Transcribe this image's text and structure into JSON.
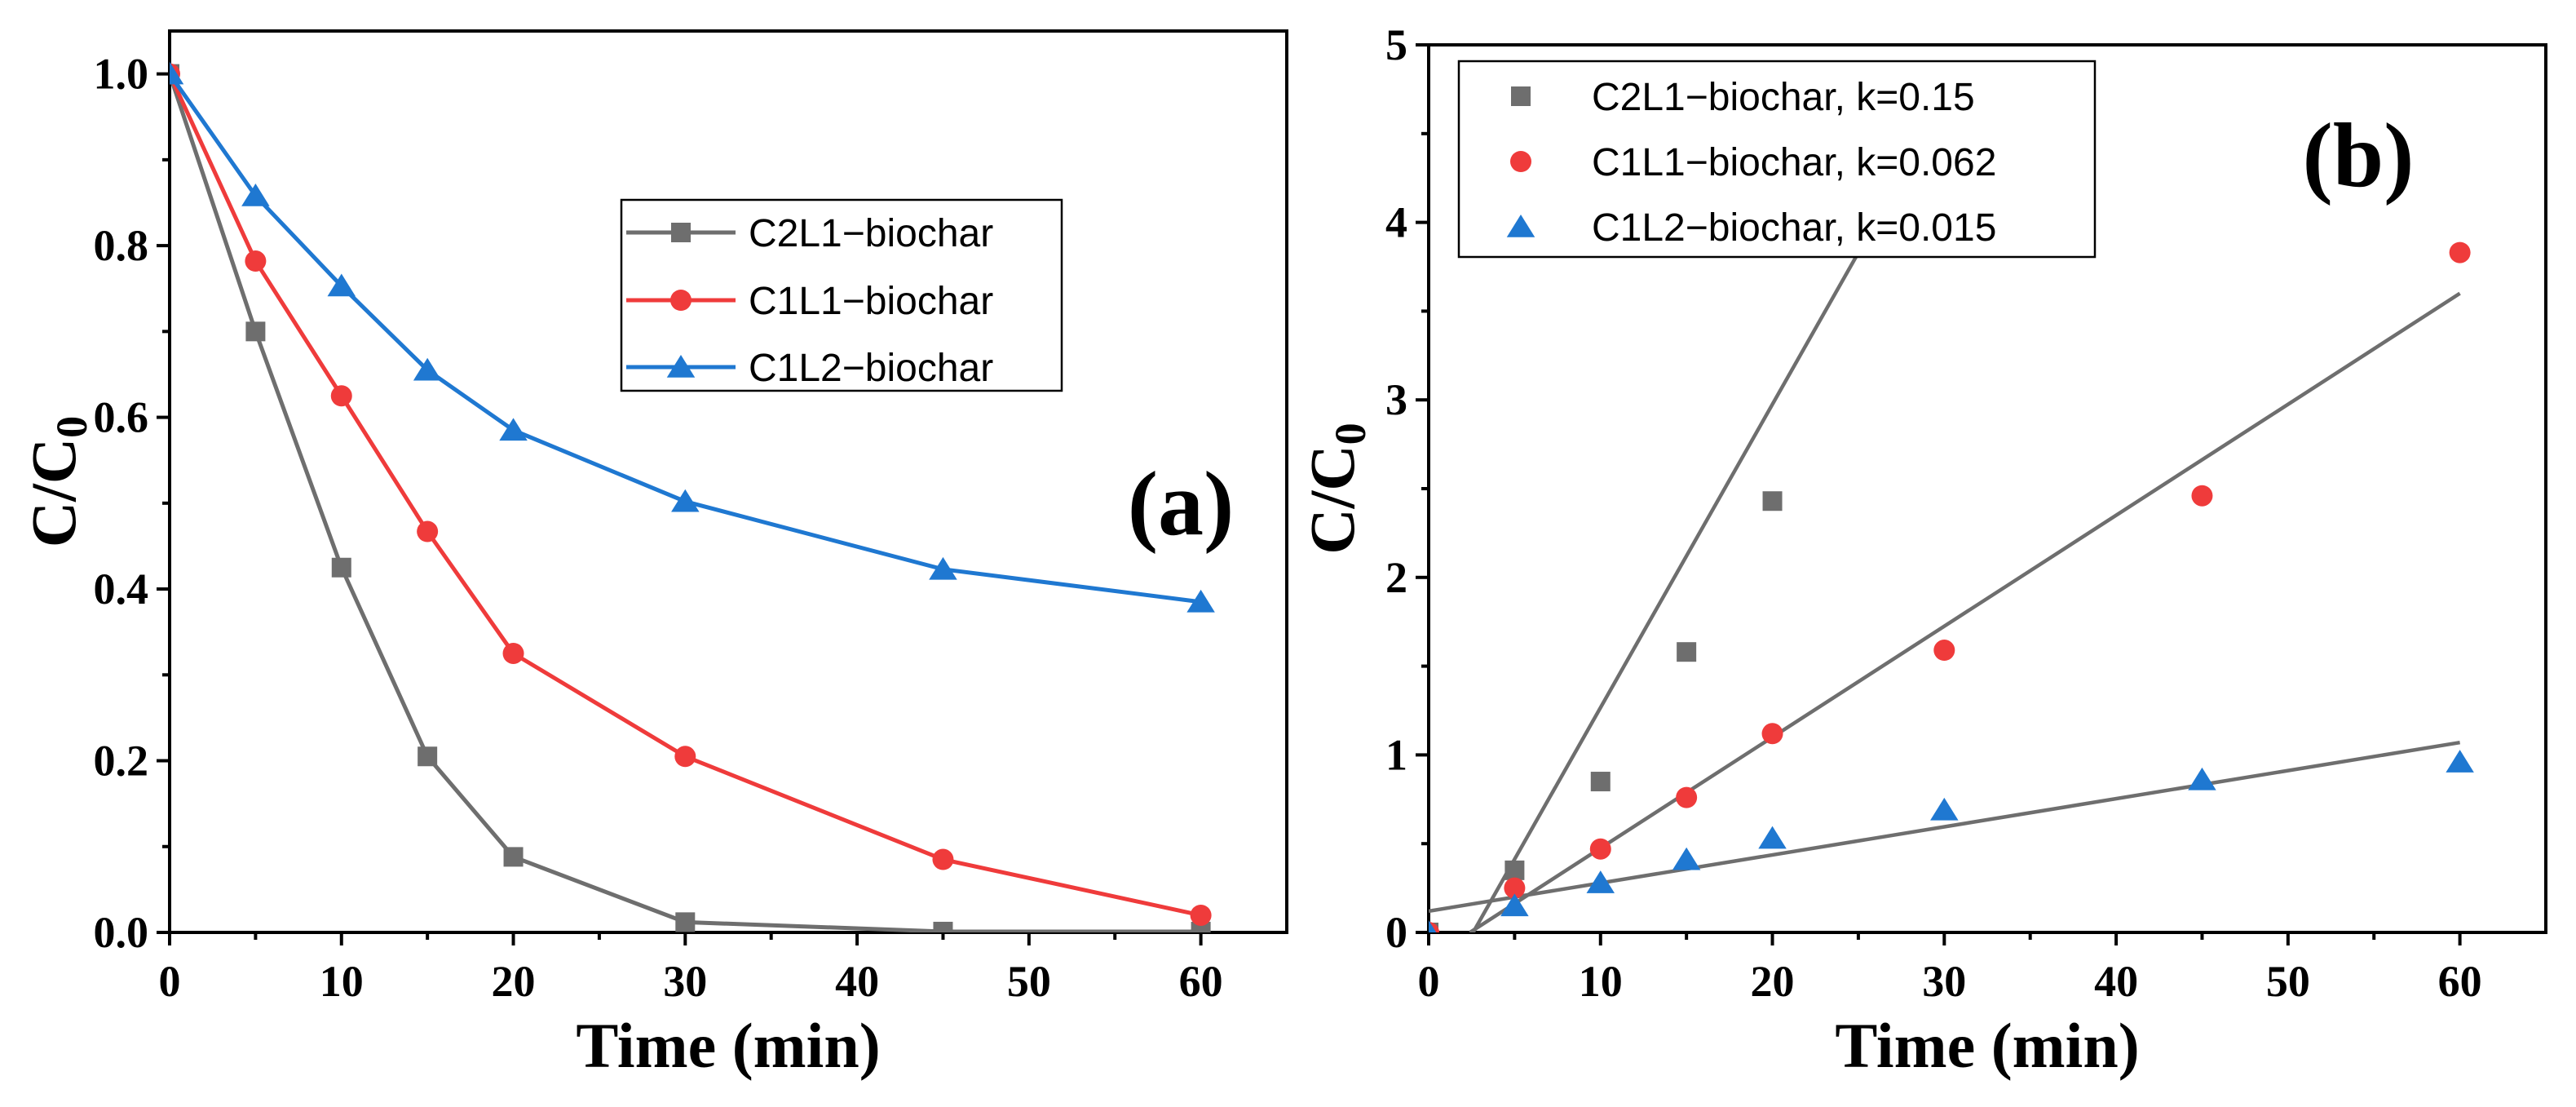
{
  "chart_data": [
    {
      "type": "line",
      "panel_label": "(a)",
      "xlabel": "Time (min)",
      "ylabel_main": "C/C",
      "ylabel_sub": "0",
      "xlim": [
        0,
        65
      ],
      "ylim": [
        0,
        1.05
      ],
      "xticks": [
        0,
        10,
        20,
        30,
        40,
        50,
        60
      ],
      "yticks": [
        "0.0",
        "0.2",
        "0.4",
        "0.6",
        "0.8",
        "1.0"
      ],
      "legend_position": "upper-right",
      "x": [
        0,
        5,
        10,
        15,
        20,
        30,
        45,
        60
      ],
      "series": [
        {
          "name": "C2L1−biochar",
          "color": "#6e6e6e",
          "marker": "square",
          "values": [
            1.0,
            0.7,
            0.425,
            0.205,
            0.088,
            0.012,
            0.001,
            0.001
          ]
        },
        {
          "name": "C1L1−biochar",
          "color": "#ef3b3b",
          "marker": "circle",
          "values": [
            1.0,
            0.782,
            0.625,
            0.467,
            0.325,
            0.205,
            0.085,
            0.02
          ]
        },
        {
          "name": "C1L2−biochar",
          "color": "#1f78d1",
          "marker": "triangle",
          "values": [
            1.0,
            0.858,
            0.753,
            0.655,
            0.585,
            0.502,
            0.423,
            0.385
          ]
        }
      ]
    },
    {
      "type": "scatter",
      "panel_label": "(b)",
      "xlabel": "Time (min)",
      "ylabel_main": "C/C",
      "ylabel_sub": "0",
      "xlim": [
        0,
        65
      ],
      "ylim": [
        0,
        5
      ],
      "xticks": [
        0,
        10,
        20,
        30,
        40,
        50,
        60
      ],
      "yticks": [
        "0",
        "1",
        "2",
        "3",
        "4",
        "5"
      ],
      "legend_position": "upper-left",
      "x": [
        0,
        5,
        10,
        15,
        20,
        30,
        45,
        60
      ],
      "series": [
        {
          "name": "C2L1−biochar, k=0.15",
          "color": "#6e6e6e",
          "marker": "square",
          "values": [
            0,
            0.35,
            0.85,
            1.58,
            2.43,
            null,
            null,
            null
          ],
          "fit": {
            "x": [
              2.0,
              26.0
            ],
            "y": [
              -0.1,
              4.0
            ],
            "color": "#6e6e6e"
          }
        },
        {
          "name": "C1L1−biochar, k=0.062",
          "color": "#ef3b3b",
          "marker": "circle",
          "values": [
            0,
            0.25,
            0.47,
            0.76,
            1.12,
            1.59,
            2.46,
            3.83
          ],
          "fit": {
            "x": [
              2.4,
              60
            ],
            "y": [
              0.0,
              3.6
            ],
            "color": "#6e6e6e"
          }
        },
        {
          "name": "C1L2−biochar, k=0.015",
          "color": "#1f78d1",
          "marker": "triangle",
          "values": [
            0,
            0.15,
            0.28,
            0.41,
            0.53,
            0.69,
            0.86,
            0.96
          ],
          "fit": {
            "x": [
              0,
              60
            ],
            "y": [
              0.12,
              1.07
            ],
            "color": "#6e6e6e"
          }
        }
      ]
    }
  ]
}
